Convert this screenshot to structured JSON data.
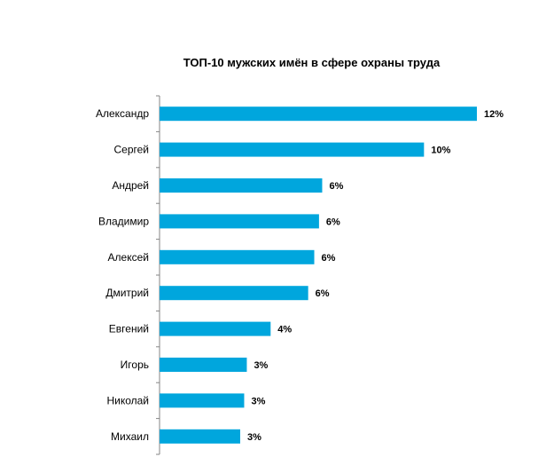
{
  "chart_data": {
    "type": "bar",
    "orientation": "horizontal",
    "title": "ТОП-10 мужских имён в сфере охраны труда",
    "categories": [
      "Александр",
      "Сергей",
      "Андрей",
      "Владимир",
      "Алексей",
      "Дмитрий",
      "Евгений",
      "Игорь",
      "Николай",
      "Михаил"
    ],
    "values": [
      12,
      10,
      6,
      6,
      6,
      6,
      4,
      3,
      3,
      3
    ],
    "value_labels": [
      "12%",
      "10%",
      "6%",
      "6%",
      "6%",
      "6%",
      "4%",
      "3%",
      "3%",
      "3%"
    ],
    "bar_lengths_relative": [
      12.0,
      10.0,
      6.15,
      6.03,
      5.85,
      5.62,
      4.2,
      3.3,
      3.2,
      3.05
    ],
    "xlim": [
      0,
      12
    ],
    "grid": false,
    "legend": "none",
    "bar_color": "#00a6dd"
  }
}
